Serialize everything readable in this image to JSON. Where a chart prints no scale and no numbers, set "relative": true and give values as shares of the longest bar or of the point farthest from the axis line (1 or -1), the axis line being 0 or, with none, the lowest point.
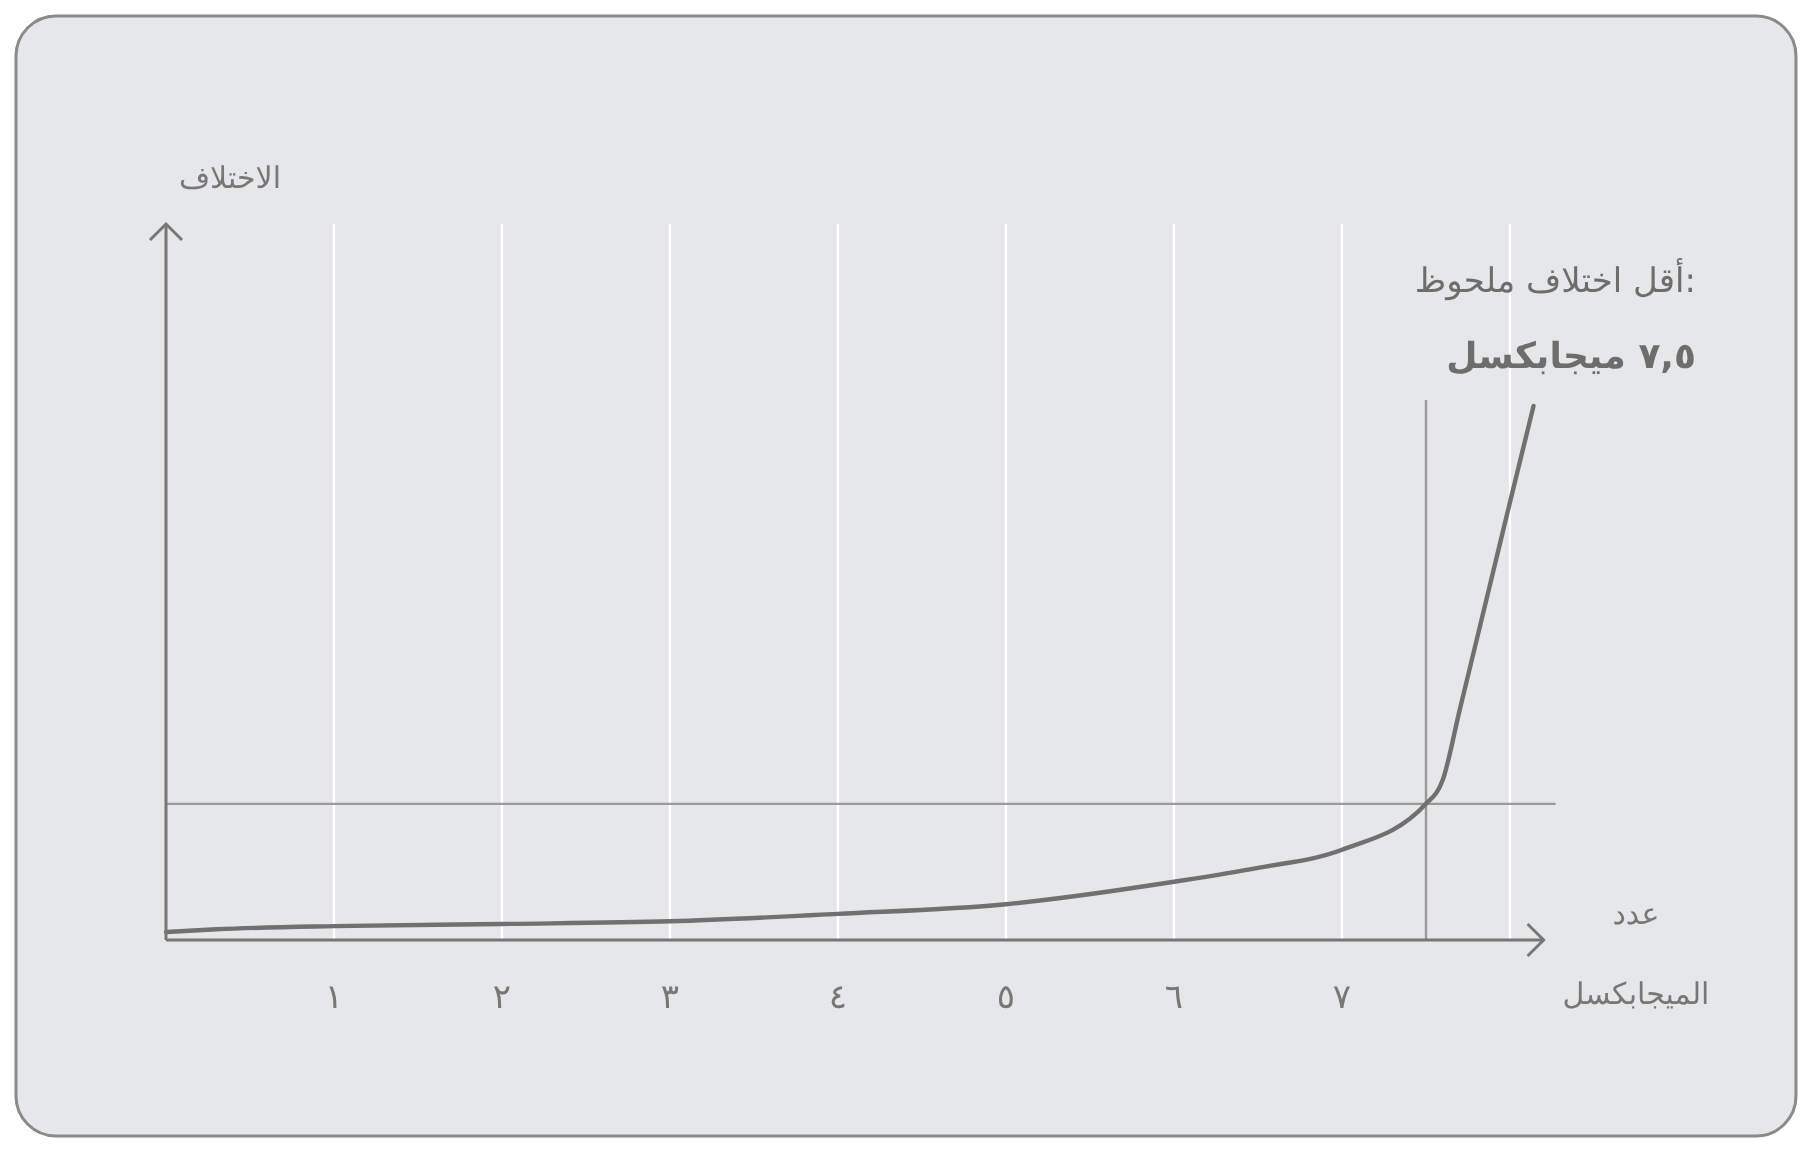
{
  "chart_data": {
    "type": "line",
    "relative": true,
    "xlabel": "عدد الميجابكسل",
    "annotations": [
      "الاختلاف",
      "أقل اختلاف ملحوظ:",
      "٧,٥ ميجابكسل"
    ],
    "x": [
      0,
      0.3,
      1,
      2,
      3,
      4,
      5,
      6,
      6.5,
      7,
      7.5,
      7.6,
      7.7,
      7.8,
      7.9,
      8,
      8.14
    ],
    "series": [
      {
        "color": "#707070",
        "values": [
          0.015,
          0.02,
          0.026,
          0.03,
          0.035,
          0.049,
          0.067,
          0.109,
          0.135,
          0.169,
          0.255,
          0.3,
          0.43,
          0.56,
          0.69,
          0.82,
          1
        ]
      }
    ],
    "xlim": [
      0,
      8.2
    ],
    "xticks": [
      {
        "value": 1,
        "label": "١"
      },
      {
        "value": 2,
        "label": "٢"
      },
      {
        "value": 3,
        "label": "٣"
      },
      {
        "value": 4,
        "label": "٤"
      },
      {
        "value": 5,
        "label": "٥"
      },
      {
        "value": 6,
        "label": "٦"
      },
      {
        "value": 7,
        "label": "٧"
      },
      {
        "value": 8,
        "label": null
      }
    ],
    "grid": "x",
    "marker": "none",
    "line_style": "solid",
    "ref_lines": [
      {
        "axis": "x",
        "value": 7.5,
        "color": "#999999"
      },
      {
        "axis": "y",
        "value": 0.255,
        "color": "#999999"
      }
    ]
  }
}
